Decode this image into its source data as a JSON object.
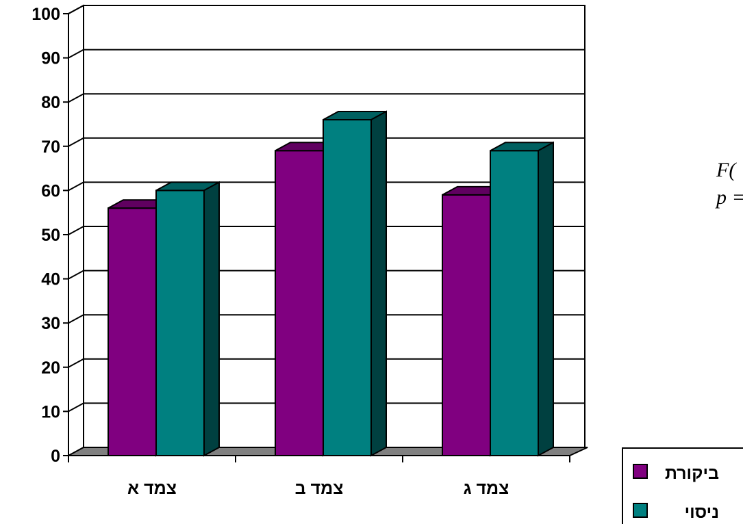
{
  "chart_data": {
    "type": "bar",
    "categories": [
      "צמד א",
      "צמד ב",
      "צמד ג"
    ],
    "series": [
      {
        "name": "ביקורת",
        "values": [
          56,
          69,
          59
        ],
        "color": "#800080"
      },
      {
        "name": "ניסוי",
        "values": [
          60,
          76,
          69
        ],
        "color": "#008080"
      }
    ],
    "ylim": [
      0,
      100
    ],
    "yticks": [
      0,
      10,
      20,
      30,
      40,
      50,
      60,
      70,
      80,
      90,
      100
    ],
    "grid": true,
    "three_d": true,
    "legend_position": "bottom-right",
    "floor_color": "#808080"
  },
  "side_text": {
    "line1": "F(",
    "line2": "p ="
  }
}
